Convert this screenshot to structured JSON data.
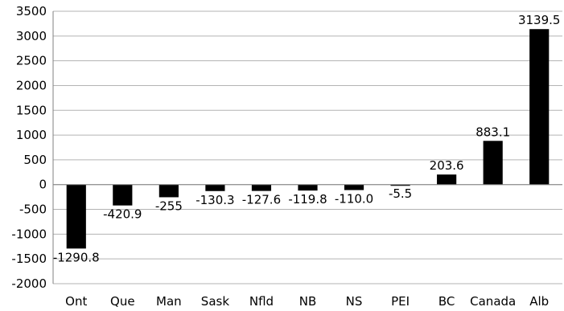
{
  "chart_data": {
    "type": "bar",
    "title": "",
    "xlabel": "",
    "ylabel": "",
    "ylim": [
      -2000,
      3500
    ],
    "ytick_step": 500,
    "grid": true,
    "legend": "none",
    "bar_color": "#000000",
    "categories": [
      "Ont",
      "Que",
      "Man",
      "Sask",
      "Nfld",
      "NB",
      "NS",
      "PEI",
      "BC",
      "Canada",
      "Alb"
    ],
    "values": [
      -1290.8,
      -420.9,
      -255,
      -130.3,
      -127.6,
      -119.8,
      -110.0,
      -5.5,
      203.6,
      883.1,
      3139.5
    ],
    "data_labels": [
      "-1290.8",
      "-420.9",
      "-255",
      "-130.3",
      "-127.6",
      "-119.8",
      "-110.0",
      "-5.5",
      "203.6",
      "883.1",
      "3139.5"
    ]
  }
}
